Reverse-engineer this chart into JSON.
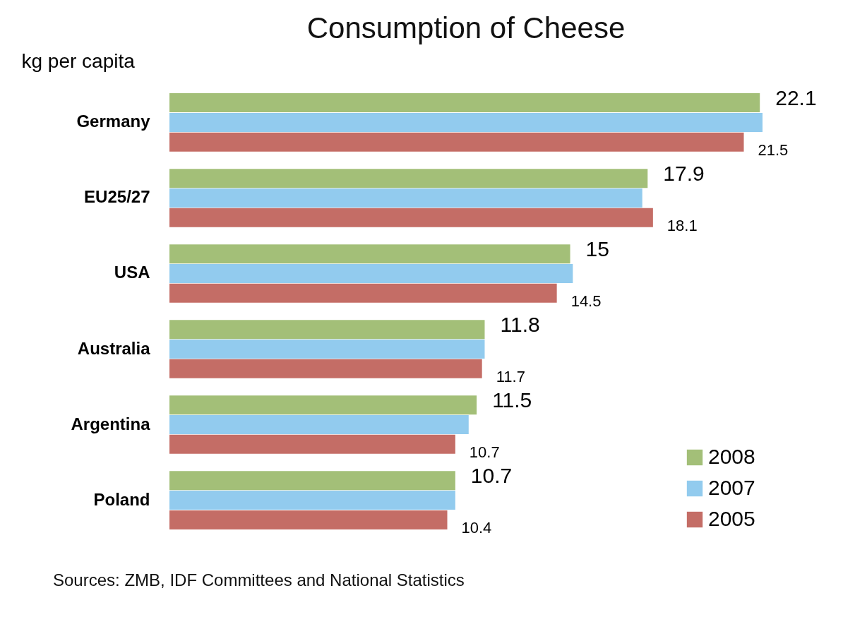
{
  "chart_data": {
    "type": "bar",
    "orientation": "horizontal",
    "title": "Consumption of Cheese",
    "xlabel": "kg per capita",
    "categories": [
      "Germany",
      "EU25/27",
      "USA",
      "Australia",
      "Argentina",
      "Poland"
    ],
    "series": [
      {
        "name": "2008",
        "color": "#a3bf78",
        "values": [
          22.1,
          17.9,
          15,
          11.8,
          11.5,
          10.7
        ],
        "value_labels": [
          "22.1",
          "17.9",
          "15",
          "11.8",
          "11.5",
          "10.7"
        ]
      },
      {
        "name": "2007",
        "color": "#92cbee",
        "values": [
          22.2,
          17.7,
          15.1,
          11.8,
          11.2,
          10.7
        ]
      },
      {
        "name": "2005",
        "color": "#c46d66",
        "values": [
          21.5,
          18.1,
          14.5,
          11.7,
          10.7,
          10.4
        ],
        "value_labels": [
          "21.5",
          "18.1",
          "14.5",
          "11.7",
          "10.7",
          "10.4"
        ]
      }
    ],
    "legend": "bottom right",
    "grid": false,
    "annotations": [
      "Sources: ZMB, IDF Committees and National Statistics"
    ]
  }
}
